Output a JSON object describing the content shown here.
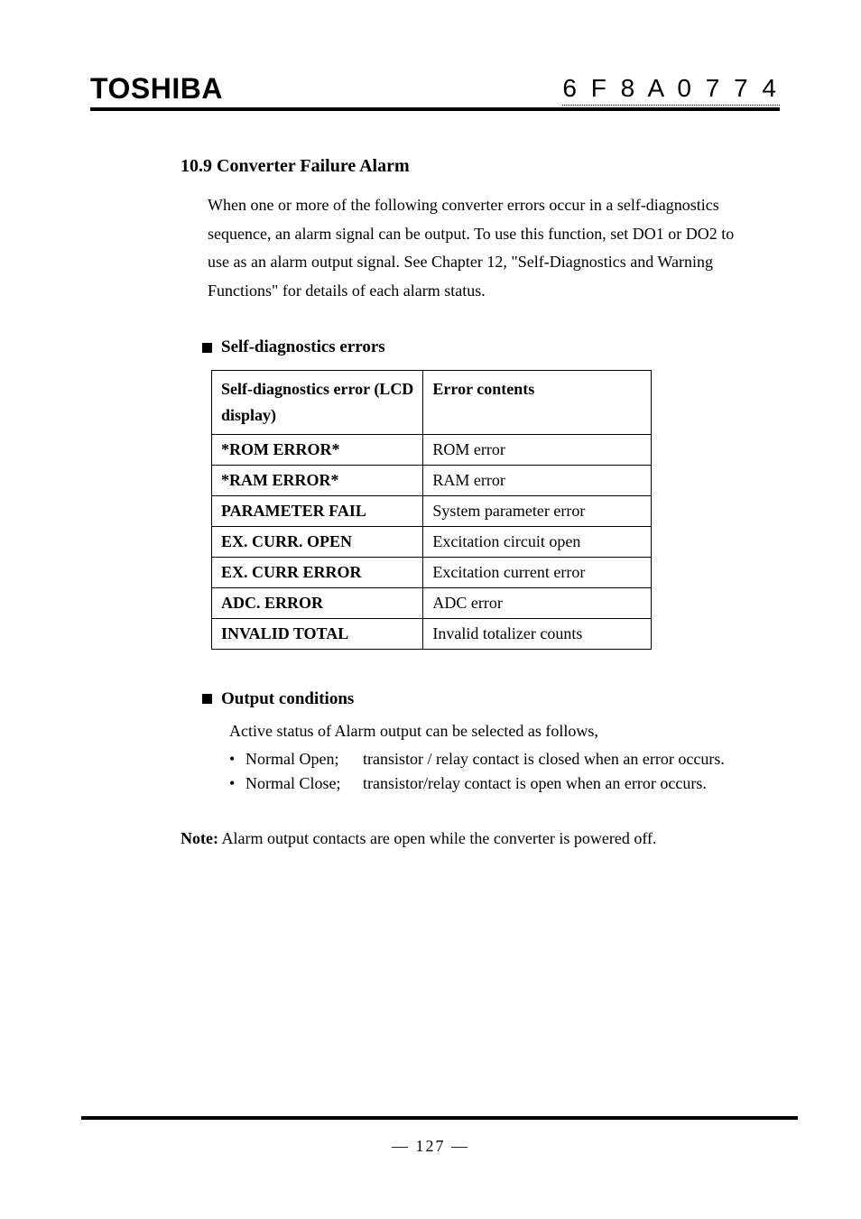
{
  "header": {
    "brand": "TOSHIBA",
    "doc_code": "6 F 8 A 0 7 7 4"
  },
  "section": {
    "heading": "10.9 Converter Failure Alarm",
    "intro": "When one or more of the following converter errors occur in a self-diagnostics sequence, an alarm signal can be output. To use this function, set DO1 or DO2 to use as an alarm output signal. See Chapter 12, \"Self-Diagnostics and Warning Functions\" for details of each alarm status."
  },
  "errors_block": {
    "bullet_label": "Self-diagnostics errors",
    "columns": [
      "Self-diagnostics error (LCD display)",
      "Error contents"
    ],
    "rows": [
      [
        "*ROM ERROR*",
        "ROM error"
      ],
      [
        "*RAM ERROR*",
        "RAM error"
      ],
      [
        "PARAMETER FAIL",
        "System parameter error"
      ],
      [
        "EX. CURR. OPEN",
        "Excitation circuit open"
      ],
      [
        "EX. CURR ERROR",
        "Excitation current error"
      ],
      [
        "ADC. ERROR",
        "ADC error"
      ],
      [
        "INVALID TOTAL",
        "Invalid totalizer counts"
      ]
    ]
  },
  "output_block": {
    "bullet_label": "Output conditions",
    "intro": "Active status of Alarm output can be selected as follows,",
    "items": [
      {
        "name": "Normal Open;",
        "desc": "transistor / relay contact is closed when an error occurs."
      },
      {
        "name": "Normal Close;",
        "desc": "transistor/relay contact is open when an error occurs."
      }
    ]
  },
  "note": {
    "label": "Note:",
    "text": " Alarm output contacts are open while the converter is powered off."
  },
  "footer": {
    "page_number": "—   127   —"
  }
}
